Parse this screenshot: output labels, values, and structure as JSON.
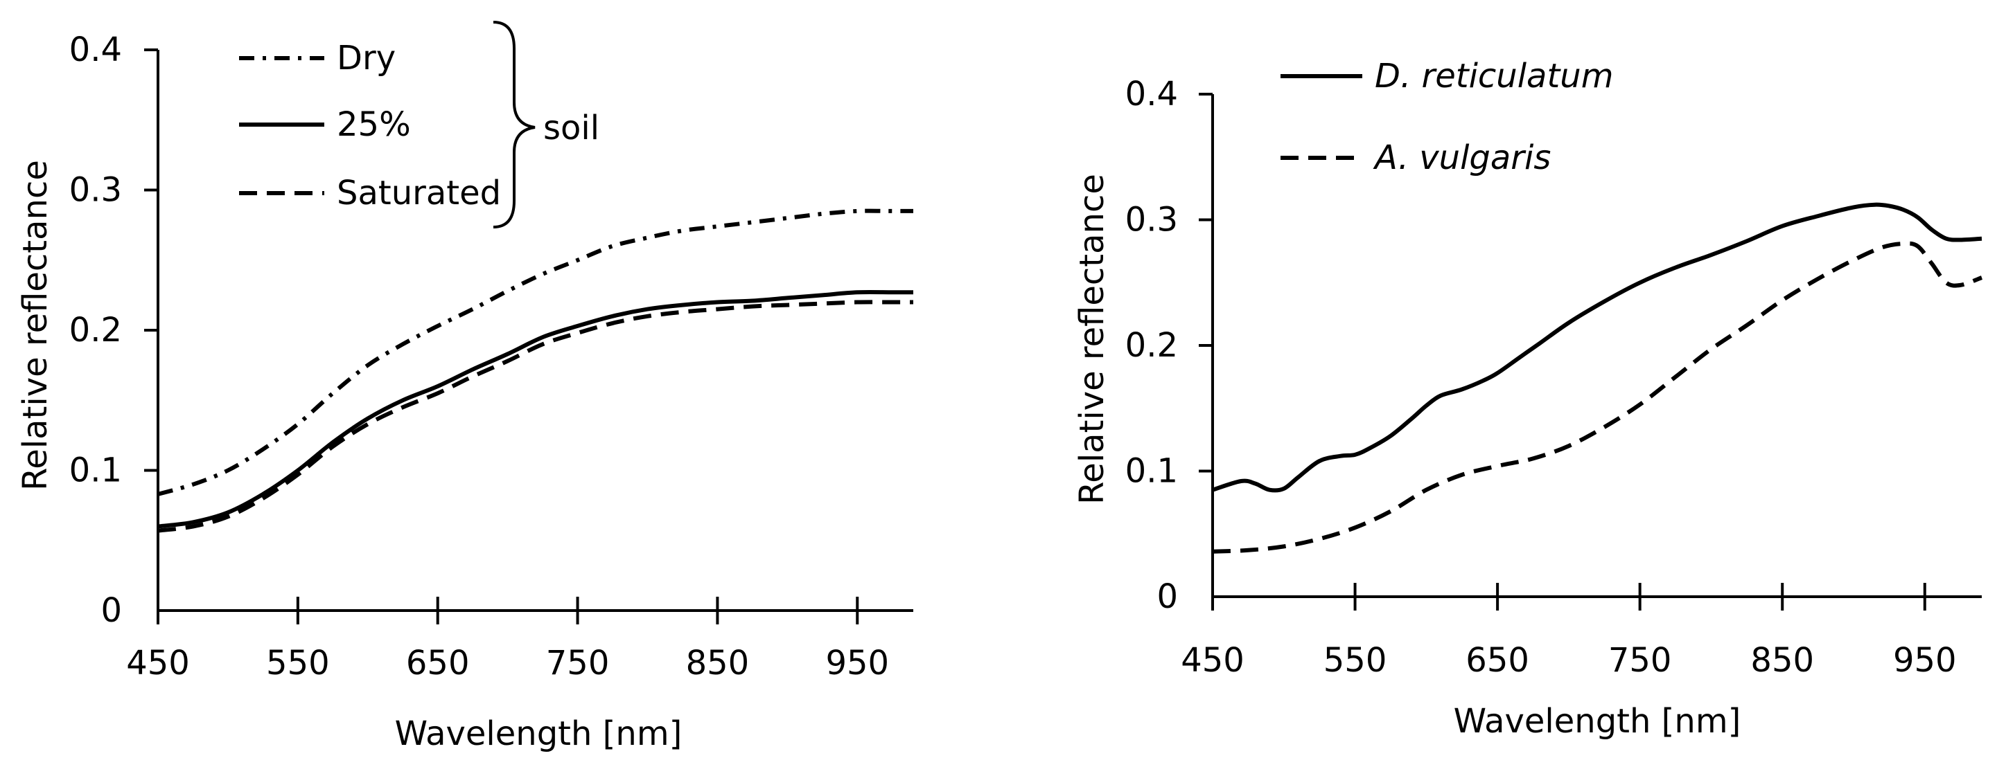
{
  "chart_data": [
    {
      "type": "line",
      "title": "",
      "xlabel": "Wavelength [nm]",
      "ylabel": "Relative reflectance",
      "xlim": [
        450,
        990
      ],
      "ylim": [
        0,
        0.4
      ],
      "xticks": [
        "450",
        "550",
        "650",
        "750",
        "850",
        "950"
      ],
      "yticks": [
        "0",
        "0.1",
        "0.2",
        "0.3",
        "0.4"
      ],
      "legend_group_label": "soil",
      "series": [
        {
          "name": "Dry",
          "style": "dashdot",
          "x": [
            450,
            475,
            500,
            525,
            550,
            575,
            600,
            625,
            650,
            675,
            700,
            725,
            750,
            775,
            800,
            825,
            850,
            875,
            900,
            925,
            950,
            975,
            990
          ],
          "y": [
            0.083,
            0.09,
            0.1,
            0.115,
            0.133,
            0.155,
            0.175,
            0.19,
            0.203,
            0.215,
            0.228,
            0.24,
            0.25,
            0.26,
            0.266,
            0.271,
            0.274,
            0.277,
            0.28,
            0.283,
            0.285,
            0.285,
            0.285
          ]
        },
        {
          "name": "25%",
          "style": "solid",
          "x": [
            450,
            475,
            500,
            525,
            550,
            575,
            600,
            625,
            650,
            675,
            700,
            725,
            750,
            775,
            800,
            825,
            850,
            875,
            900,
            925,
            950,
            975,
            990
          ],
          "y": [
            0.06,
            0.063,
            0.07,
            0.083,
            0.1,
            0.12,
            0.137,
            0.15,
            0.16,
            0.172,
            0.183,
            0.195,
            0.203,
            0.21,
            0.215,
            0.218,
            0.22,
            0.221,
            0.223,
            0.225,
            0.227,
            0.227,
            0.227
          ]
        },
        {
          "name": "Saturated",
          "style": "dash",
          "x": [
            450,
            475,
            500,
            525,
            550,
            575,
            600,
            625,
            650,
            675,
            700,
            725,
            750,
            775,
            800,
            825,
            850,
            875,
            900,
            925,
            950,
            975,
            990
          ],
          "y": [
            0.057,
            0.06,
            0.067,
            0.08,
            0.097,
            0.117,
            0.133,
            0.145,
            0.155,
            0.167,
            0.178,
            0.19,
            0.198,
            0.205,
            0.21,
            0.213,
            0.215,
            0.217,
            0.218,
            0.219,
            0.22,
            0.22,
            0.22
          ]
        }
      ]
    },
    {
      "type": "line",
      "title": "",
      "xlabel": "Wavelength [nm]",
      "ylabel": "Relative reflectance",
      "xlim": [
        450,
        990
      ],
      "ylim": [
        0,
        0.4
      ],
      "xticks": [
        "450",
        "550",
        "650",
        "750",
        "850",
        "950"
      ],
      "yticks": [
        "0",
        "0.1",
        "0.2",
        "0.3",
        "0.4"
      ],
      "series": [
        {
          "name": "D. reticulatum",
          "style": "solid",
          "x": [
            450,
            470,
            480,
            490,
            500,
            510,
            525,
            540,
            550,
            560,
            575,
            590,
            600,
            610,
            625,
            640,
            650,
            665,
            680,
            700,
            725,
            750,
            775,
            800,
            825,
            850,
            875,
            900,
            915,
            925,
            935,
            945,
            955,
            965,
            975,
            990
          ],
          "y": [
            0.085,
            0.092,
            0.09,
            0.085,
            0.086,
            0.095,
            0.108,
            0.112,
            0.113,
            0.118,
            0.128,
            0.142,
            0.152,
            0.16,
            0.165,
            0.172,
            0.178,
            0.19,
            0.202,
            0.218,
            0.235,
            0.25,
            0.262,
            0.272,
            0.283,
            0.295,
            0.303,
            0.31,
            0.312,
            0.311,
            0.308,
            0.302,
            0.292,
            0.285,
            0.284,
            0.285
          ]
        },
        {
          "name": "A. vulgaris",
          "style": "dash",
          "x": [
            450,
            475,
            500,
            525,
            550,
            575,
            600,
            625,
            650,
            675,
            700,
            725,
            750,
            775,
            800,
            825,
            850,
            875,
            900,
            920,
            935,
            945,
            955,
            965,
            975,
            990
          ],
          "y": [
            0.036,
            0.037,
            0.04,
            0.046,
            0.055,
            0.068,
            0.085,
            0.097,
            0.104,
            0.11,
            0.12,
            0.135,
            0.153,
            0.175,
            0.197,
            0.216,
            0.236,
            0.253,
            0.268,
            0.278,
            0.281,
            0.279,
            0.265,
            0.25,
            0.248,
            0.254
          ]
        }
      ]
    }
  ]
}
